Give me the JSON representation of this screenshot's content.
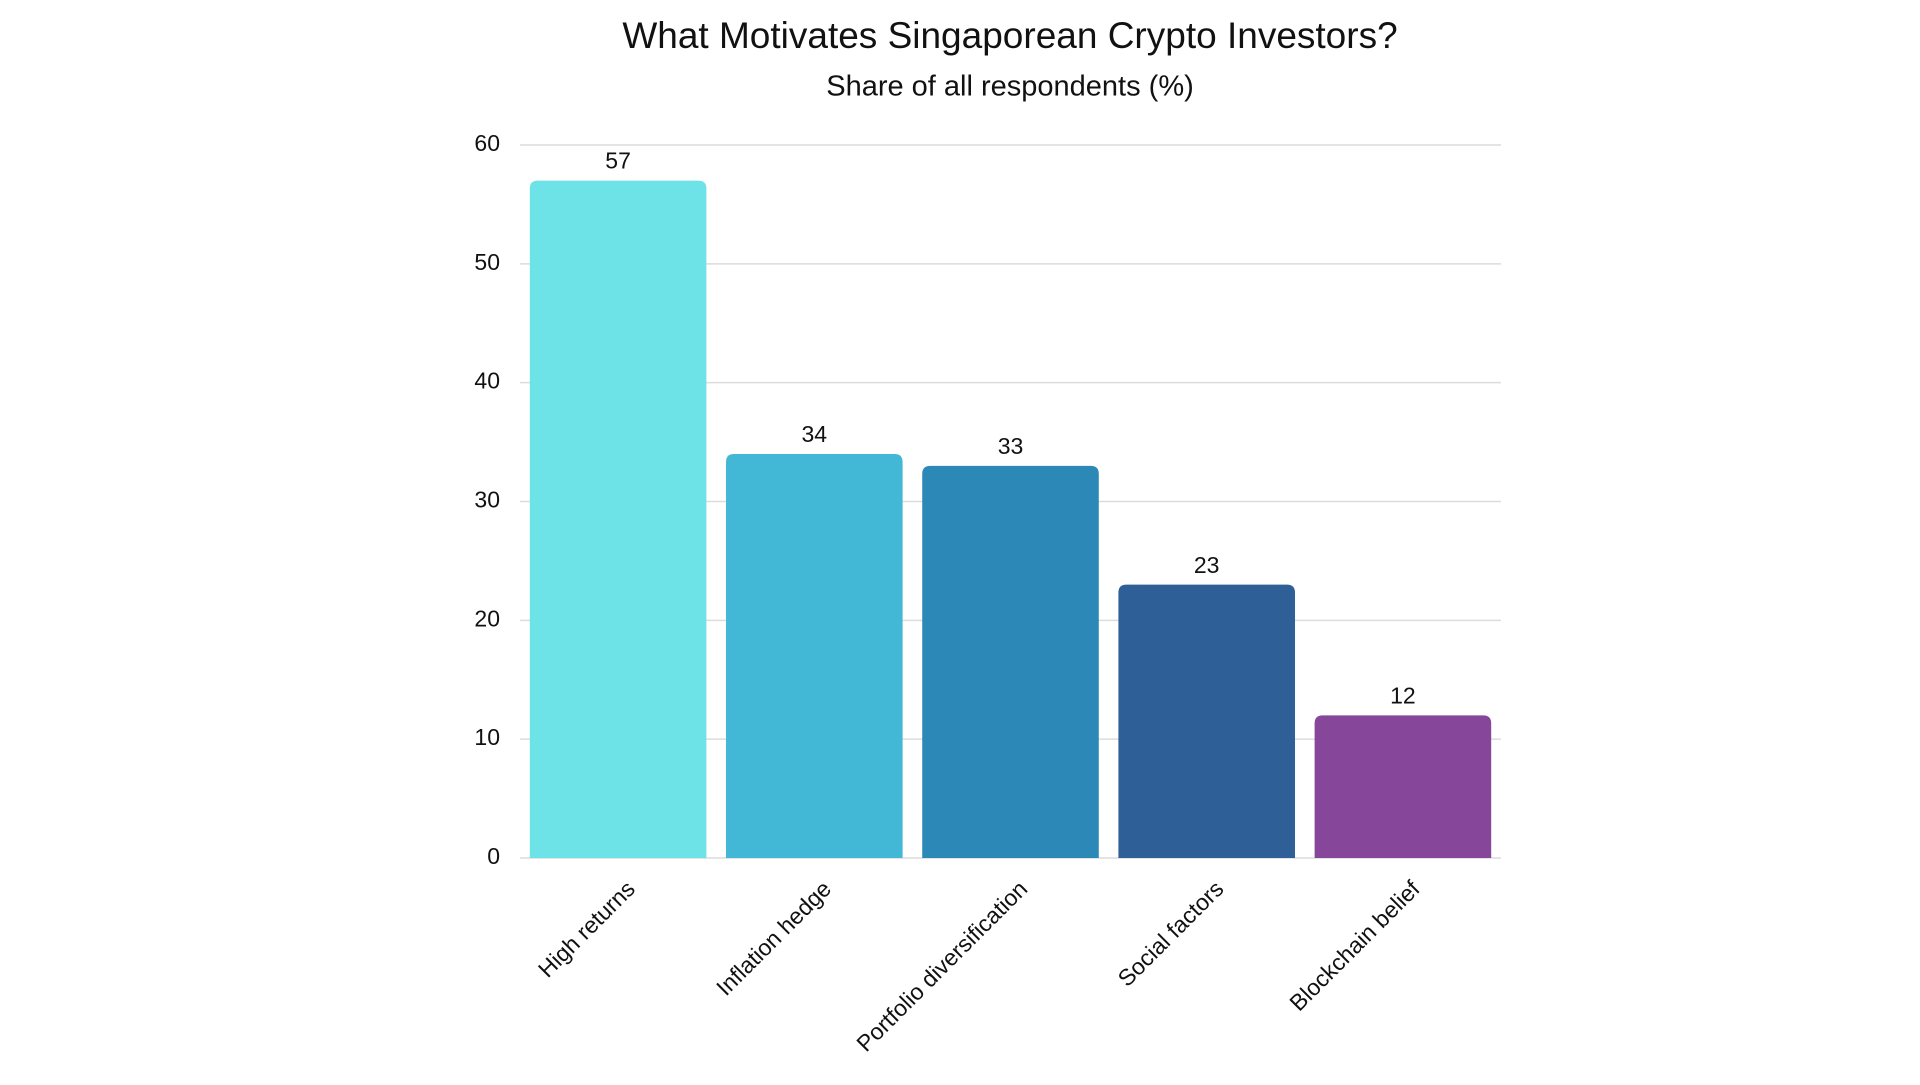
{
  "chart_data": {
    "type": "bar",
    "title": "What Motivates Singaporean Crypto Investors?",
    "subtitle": "Share of all respondents (%)",
    "categories": [
      "High returns",
      "Inflation hedge",
      "Portfolio diversification",
      "Social factors",
      "Blockchain belief"
    ],
    "values": [
      57,
      34,
      33,
      23,
      12
    ],
    "colors": [
      "#6de3e8",
      "#43b7d6",
      "#2c89b7",
      "#2e5f97",
      "#86479b"
    ],
    "ylim": [
      0,
      60
    ],
    "yticks": [
      0,
      10,
      20,
      30,
      40,
      50,
      60
    ],
    "grid": true
  }
}
